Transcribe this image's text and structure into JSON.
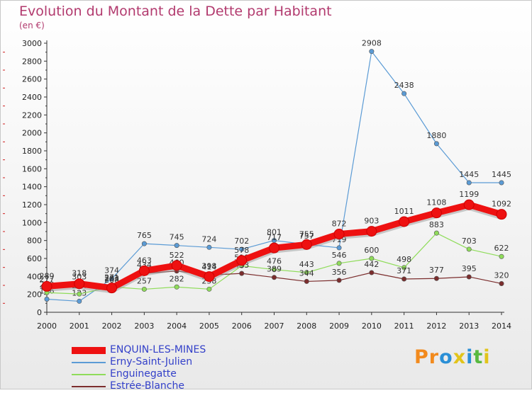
{
  "chart_data": {
    "type": "line",
    "title": "Evolution du Montant de la Dette par Habitant",
    "subtitle": "(en €)",
    "x": [
      "2000",
      "2001",
      "2002",
      "2003",
      "2004",
      "2005",
      "2006",
      "2007",
      "2008",
      "2009",
      "2010",
      "2011",
      "2012",
      "2013",
      "2014"
    ],
    "ylim": [
      0,
      3000
    ],
    "yticks": [
      0,
      200,
      400,
      600,
      800,
      1000,
      1200,
      1400,
      1600,
      1800,
      2000,
      2200,
      2400,
      2600,
      2800,
      3000
    ],
    "grid": false,
    "legend": "bottom-left",
    "series": [
      {
        "name": "Erny-Saint-Julien",
        "color": "#5b9bd5",
        "values": [
          146,
          123,
          374,
          765,
          745,
          724,
          702,
          801,
          757,
          719,
          2908,
          2438,
          1880,
          1445,
          1445
        ]
      },
      {
        "name": "Enguinegatte",
        "color": "#8fdc5a",
        "values": [
          219,
          204,
          283,
          257,
          282,
          258,
          519,
          476,
          443,
          546,
          600,
          498,
          883,
          703,
          622
        ]
      },
      {
        "name": "Estrée-Blanche",
        "color": "#7b2d2d",
        "values": [
          277,
          303,
          268,
          434,
          460,
          414,
          433,
          389,
          344,
          356,
          442,
          371,
          377,
          395,
          320
        ]
      },
      {
        "name": "ENQUIN-LES-MINES",
        "color": "#ee1111",
        "values": [
          289,
          318,
          271,
          463,
          522,
          398,
          578,
          717,
          755,
          872,
          903,
          1011,
          1108,
          1199,
          1092
        ]
      }
    ]
  },
  "brand": {
    "letters": [
      "P",
      "r",
      "o",
      "x",
      "i",
      "t",
      "i"
    ],
    "colors": [
      "#f28a1d",
      "#f28a1d",
      "#2a8fd6",
      "#e2c41a",
      "#2a8fd6",
      "#58b940",
      "#e2c41a"
    ]
  }
}
